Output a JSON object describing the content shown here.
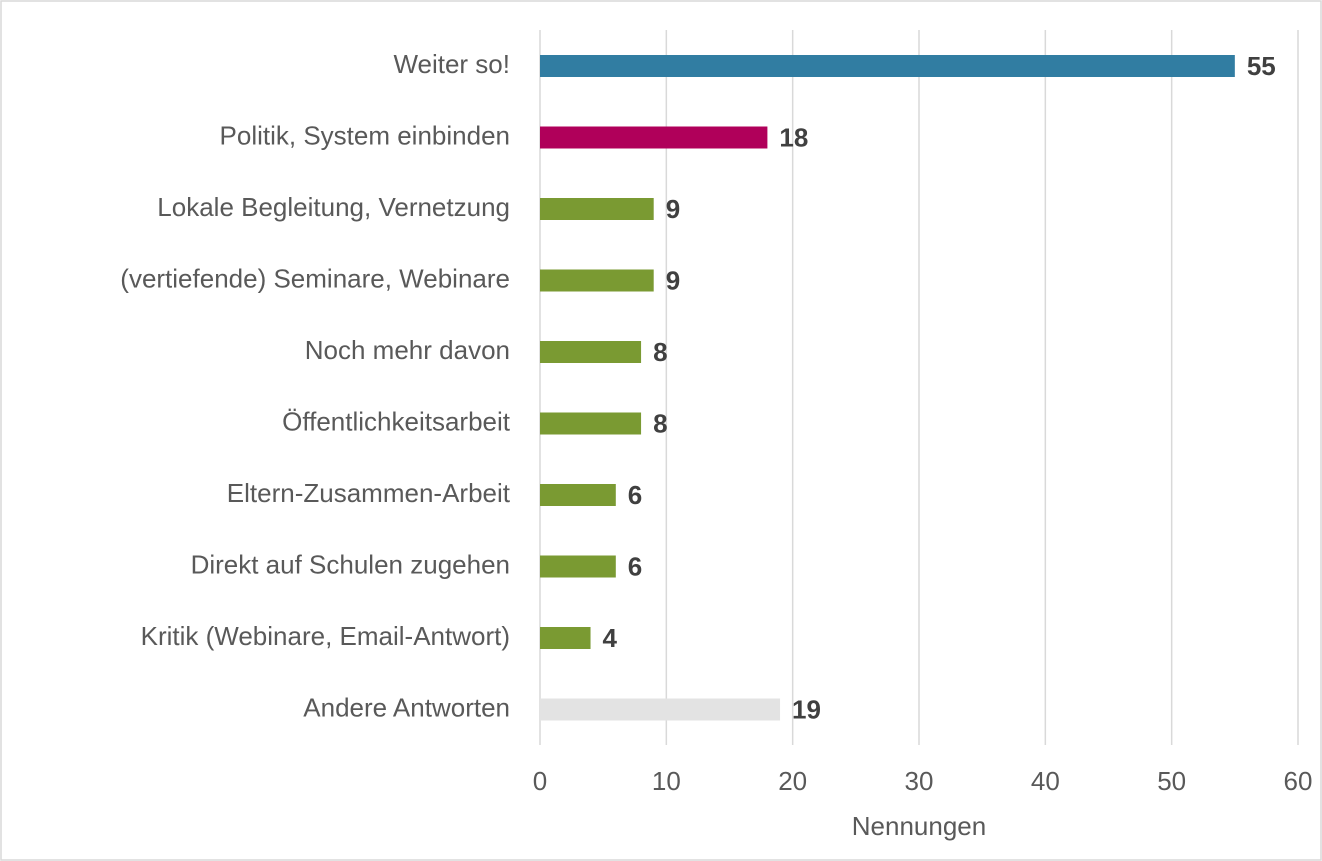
{
  "chart_data": {
    "type": "bar",
    "orientation": "horizontal",
    "categories": [
      "Weiter so!",
      "Politik, System einbinden",
      "Lokale Begleitung, Vernetzung",
      "(vertiefende) Seminare, Webinare",
      "Noch mehr davon",
      "Öffentlichkeitsarbeit",
      "Eltern-Zusammen-Arbeit",
      "Direkt auf Schulen zugehen",
      "Kritik (Webinare, Email-Antwort)",
      "Andere Antworten"
    ],
    "values": [
      55,
      18,
      9,
      9,
      8,
      8,
      6,
      6,
      4,
      19
    ],
    "colors": [
      "#317da2",
      "#b0005a",
      "#7a9a32",
      "#7a9a32",
      "#7a9a32",
      "#7a9a32",
      "#7a9a32",
      "#7a9a32",
      "#7a9a32",
      "#e3e3e3"
    ],
    "xlabel": "Nennungen",
    "xlim": [
      0,
      60
    ],
    "xticks": [
      0,
      10,
      20,
      30,
      40,
      50,
      60
    ],
    "grid": true
  }
}
